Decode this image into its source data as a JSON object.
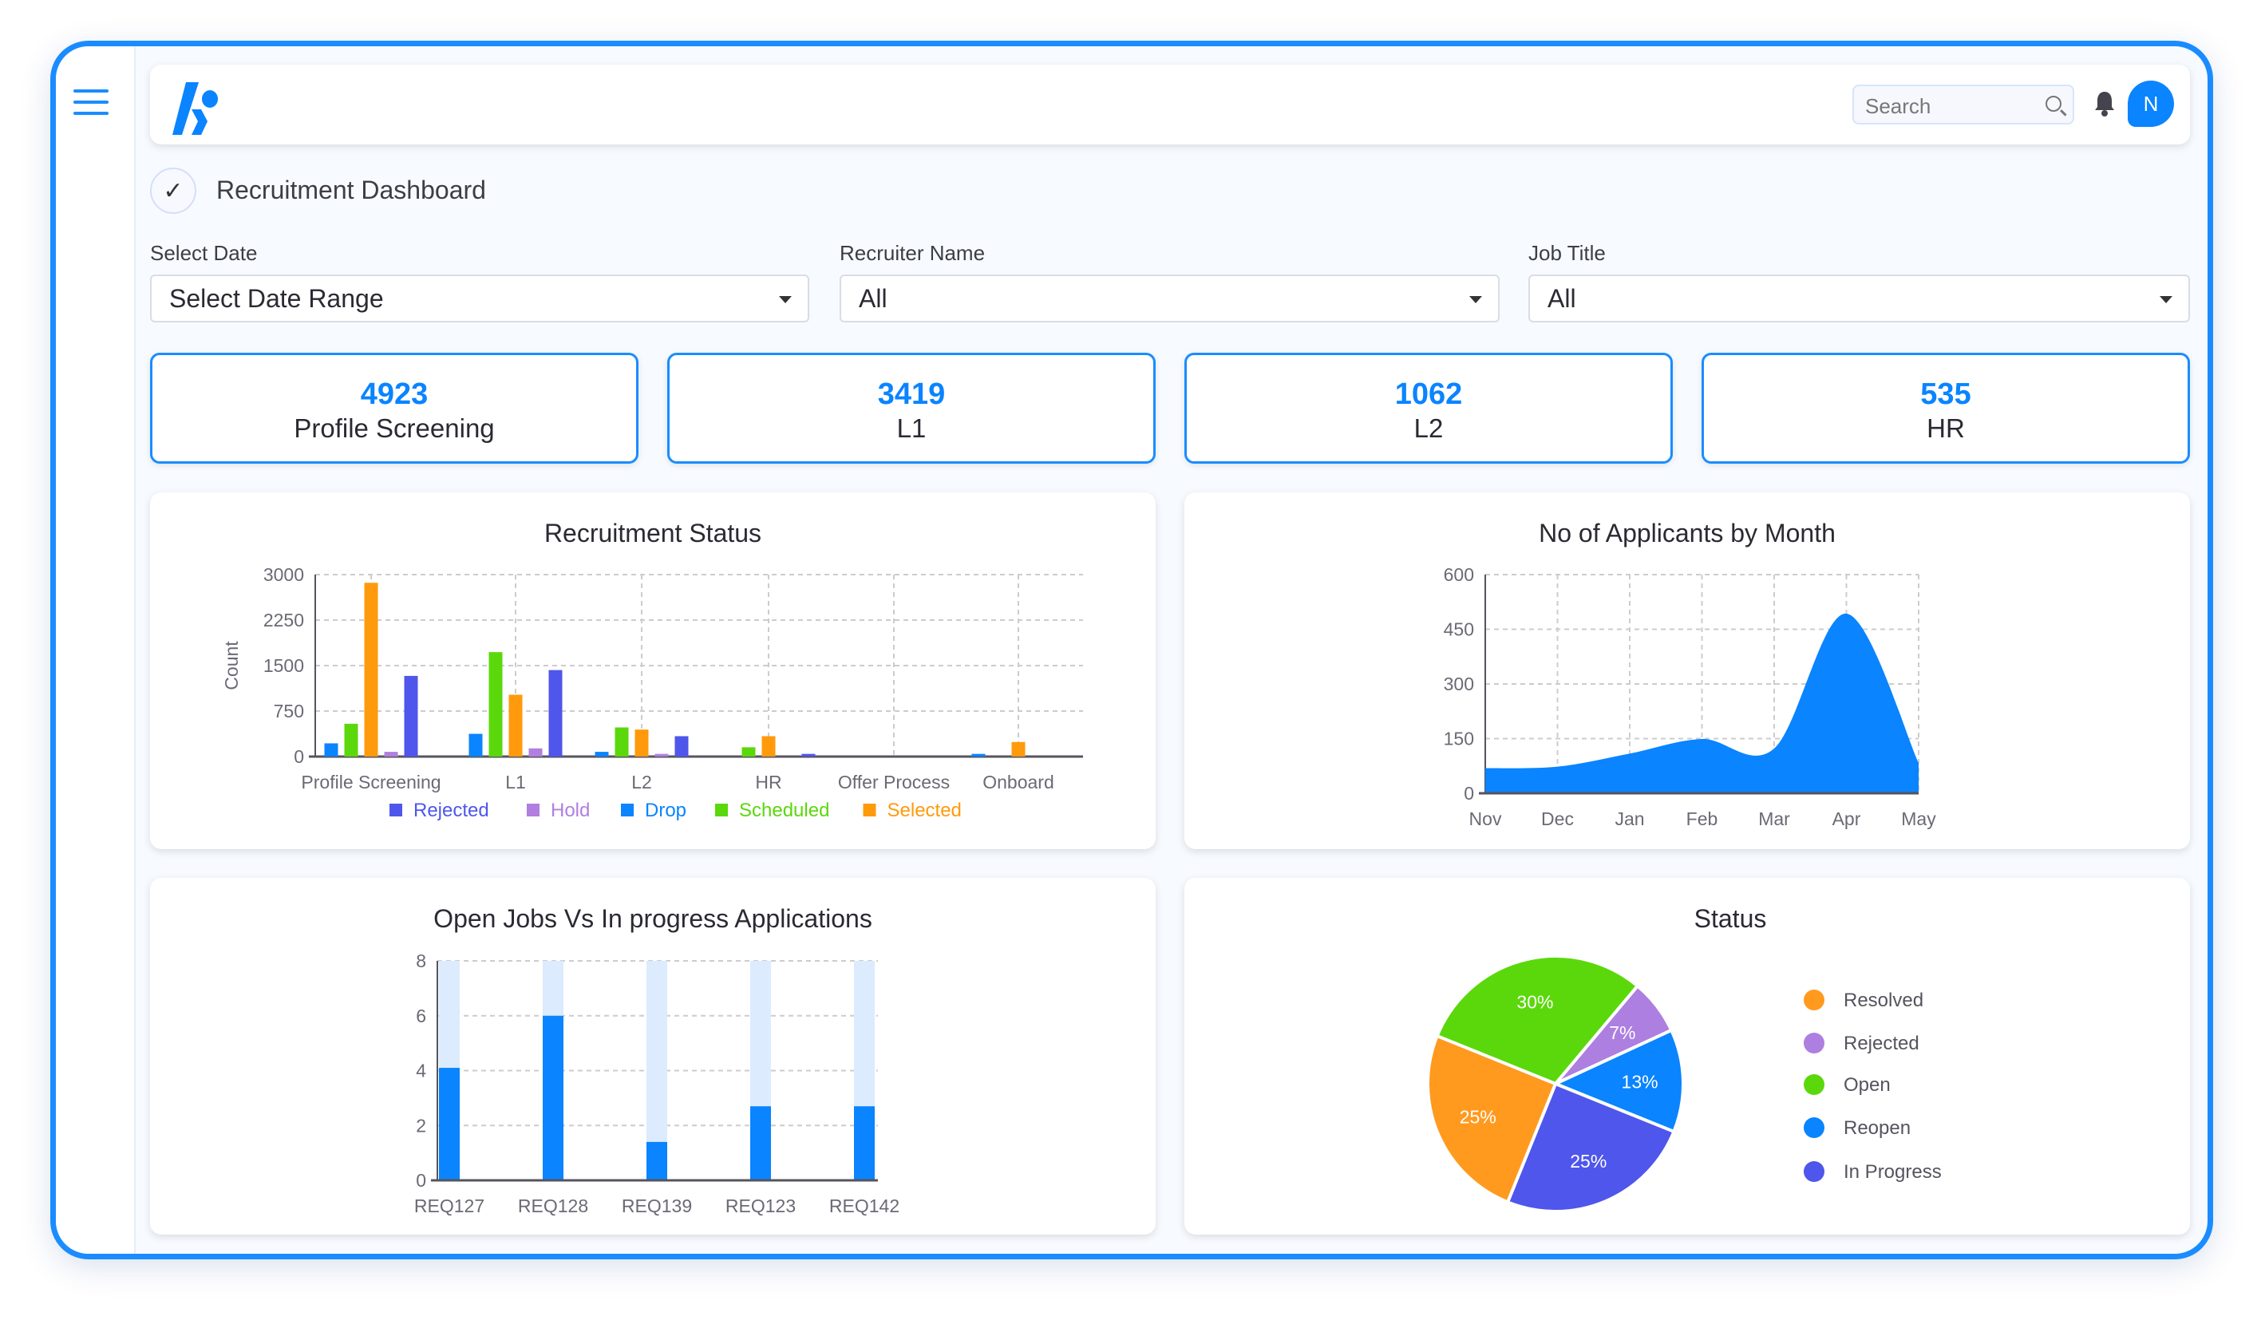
{
  "header": {
    "search_placeholder": "Search",
    "avatar_initial": "N"
  },
  "page": {
    "title": "Recruitment Dashboard"
  },
  "filters": [
    {
      "label": "Select Date",
      "value": "Select Date Range"
    },
    {
      "label": "Recruiter Name",
      "value": "All"
    },
    {
      "label": "Job Title",
      "value": "All"
    }
  ],
  "kpis": [
    {
      "value": "4923",
      "label": "Profile Screening"
    },
    {
      "value": "3419",
      "label": "L1"
    },
    {
      "value": "1062",
      "label": "L2"
    },
    {
      "value": "535",
      "label": "HR"
    }
  ],
  "colors": {
    "accent": "#0a84ff",
    "rejected": "#4f56eb",
    "hold": "#b07fe0",
    "drop": "#0a84ff",
    "scheduled": "#5bd80b",
    "selected": "#ff9a0c"
  },
  "chart_data": [
    {
      "type": "bar",
      "title": "Recruitment Status",
      "ylabel": "Count",
      "ylim": [
        0,
        3000
      ],
      "yticks": [
        "0",
        "750",
        "1500",
        "2250",
        "3000"
      ],
      "grid": true,
      "legend": "bottom",
      "categories": [
        "Profile Screening",
        "L1",
        "L2",
        "HR",
        "Offer Process",
        "Onboard"
      ],
      "series": [
        {
          "name": "Drop",
          "color": "#0a84ff",
          "values": [
            218,
            375,
            78,
            0,
            0,
            44
          ]
        },
        {
          "name": "Scheduled",
          "color": "#5bd80b",
          "values": [
            541,
            1722,
            480,
            153,
            0,
            0
          ]
        },
        {
          "name": "Selected",
          "color": "#ff9a0c",
          "values": [
            2865,
            1020,
            445,
            336,
            0,
            240
          ]
        },
        {
          "name": "Hold",
          "color": "#b07fe0",
          "values": [
            78,
            135,
            44,
            0,
            0,
            0
          ]
        },
        {
          "name": "Rejected",
          "color": "#4f56eb",
          "values": [
            1330,
            1426,
            336,
            44,
            0,
            0
          ]
        }
      ],
      "legend_order": [
        "Rejected",
        "Hold",
        "Drop",
        "Scheduled",
        "Selected"
      ]
    },
    {
      "type": "area",
      "title": "No of Applicants by Month",
      "ylim": [
        0,
        600
      ],
      "yticks": [
        "0",
        "150",
        "300",
        "450",
        "600"
      ],
      "grid": true,
      "categories": [
        "Nov",
        "Dec",
        "Jan",
        "Feb",
        "Mar",
        "Apr",
        "May"
      ],
      "values": [
        69,
        73,
        109,
        149,
        123,
        493,
        83
      ],
      "color": "#0a84ff"
    },
    {
      "type": "bar",
      "title": "Open Jobs Vs In progress Applications",
      "ylim": [
        0,
        8
      ],
      "yticks": [
        "0",
        "2",
        "4",
        "6",
        "8"
      ],
      "grid": true,
      "categories": [
        "REQ127",
        "REQ128",
        "REQ139",
        "REQ123",
        "REQ142"
      ],
      "series": [
        {
          "color": "#dcebfd",
          "values": [
            8,
            8,
            8,
            8,
            8
          ]
        },
        {
          "color": "#0a84ff",
          "values": [
            4.1,
            6,
            1.4,
            2.7,
            2.7
          ]
        }
      ]
    },
    {
      "type": "pie",
      "title": "Status",
      "legend": "right",
      "slices": [
        {
          "name": "Resolved",
          "value": 25,
          "label": "25%",
          "color": "#ff9a1f"
        },
        {
          "name": "Rejected",
          "value": 7,
          "label": "7%",
          "color": "#ad7fe0"
        },
        {
          "name": "Open",
          "value": 30,
          "label": "30%",
          "color": "#5bd80b"
        },
        {
          "name": "Reopen",
          "value": 13,
          "label": "13%",
          "color": "#0a84ff"
        },
        {
          "name": "In Progress",
          "value": 25,
          "label": "25%",
          "color": "#4f56eb"
        }
      ]
    }
  ]
}
